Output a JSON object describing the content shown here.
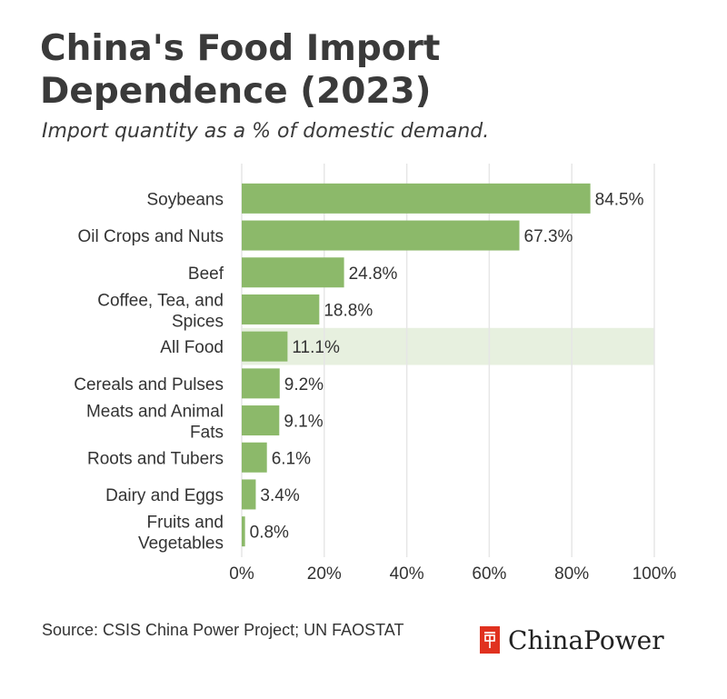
{
  "header": {
    "title": "China's Food Import Dependence (2023)",
    "subtitle": "Import quantity as a % of domestic demand."
  },
  "footer": {
    "source": "Source: CSIS China Power Project; UN FAOSTAT",
    "brand": "ChinaPower"
  },
  "colors": {
    "bar": "#8cb96a",
    "highlight": "#e7f0df",
    "grid": "#e6e6e6",
    "brand": "#e0311f"
  },
  "icons": {
    "brand": "chinapower-logo-icon"
  },
  "chart_data": {
    "type": "bar",
    "orientation": "horizontal",
    "categories": [
      "Soybeans",
      "Oil Crops and Nuts",
      "Beef",
      "Coffee, Tea, and Spices",
      "All Food",
      "Cereals and Pulses",
      "Meats and Animal Fats",
      "Roots and Tubers",
      "Dairy and Eggs",
      "Fruits and Vegetables"
    ],
    "values": [
      84.5,
      67.3,
      24.8,
      18.8,
      11.1,
      9.2,
      9.1,
      6.1,
      3.4,
      0.8
    ],
    "value_labels": [
      "84.5%",
      "67.3%",
      "24.8%",
      "18.8%",
      "11.1%",
      "9.2%",
      "9.1%",
      "6.1%",
      "3.4%",
      "0.8%"
    ],
    "highlighted_category": "All Food",
    "xlim": [
      0,
      100
    ],
    "xticks": [
      0,
      20,
      40,
      60,
      80,
      100
    ],
    "xtick_labels": [
      "0%",
      "20%",
      "40%",
      "60%",
      "80%",
      "100%"
    ],
    "grid": true
  }
}
